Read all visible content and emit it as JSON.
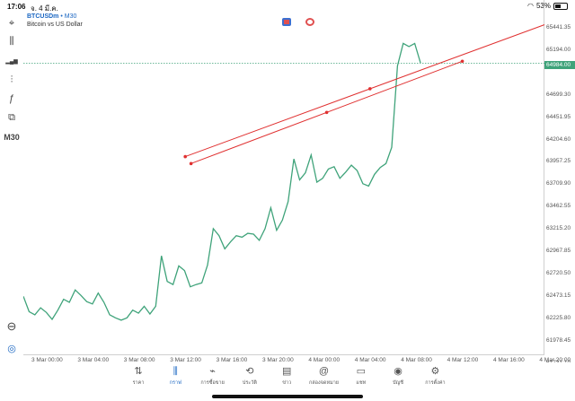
{
  "status": {
    "time": "17:06",
    "date": "จ. 4 มี.ค.",
    "battery_text": "53%",
    "battery_level": 0.53
  },
  "toolbar": {
    "items": [
      {
        "name": "crosshair-icon",
        "glyph": "⌖"
      },
      {
        "name": "candlestick-icon",
        "glyph": "⫼"
      },
      {
        "name": "bar-chart-icon",
        "glyph": "▂▄▆"
      },
      {
        "name": "indicators-icon",
        "glyph": "⫶"
      },
      {
        "name": "function-icon",
        "glyph": "ƒ"
      },
      {
        "name": "objects-icon",
        "glyph": "⧉"
      }
    ],
    "timeframe": "M30",
    "bottom_items": [
      {
        "name": "zoom-icon",
        "glyph": "⊖"
      },
      {
        "name": "app-logo-icon",
        "glyph": "◎"
      }
    ]
  },
  "symbol": {
    "name": "BTCUSDm",
    "timeframe": "• M30",
    "description": "Bitcoin vs US Dollar"
  },
  "price_axis": {
    "labels": [
      "65441.35",
      "65194.00",
      "64699.30",
      "64451.95",
      "64204.60",
      "63957.25",
      "63709.90",
      "63462.55",
      "63215.20",
      "62967.85",
      "62720.50",
      "62473.15",
      "62225.80",
      "61978.45",
      "61731.10",
      "61483.75"
    ],
    "current_price": "64984.00"
  },
  "time_axis": {
    "labels": [
      "3 Mar 00:00",
      "3 Mar 04:00",
      "3 Mar 08:00",
      "3 Mar 12:00",
      "3 Mar 16:00",
      "3 Mar 20:00",
      "4 Mar 00:00",
      "4 Mar 04:00",
      "4 Mar 08:00",
      "4 Mar 12:00",
      "4 Mar 16:00",
      "4 Mar 20:00"
    ]
  },
  "chart_data": {
    "type": "line",
    "series": [
      {
        "values": [
          61978,
          61780,
          61740,
          61830,
          61770,
          61680,
          61800,
          61940,
          61900,
          62060,
          61990,
          61910,
          61880,
          62020,
          61900,
          61740,
          61700,
          61670,
          61700,
          61800,
          61760,
          61850,
          61750,
          61850,
          62500,
          62170,
          62130,
          62370,
          62310,
          62100,
          62130,
          62150,
          62380,
          62850,
          62760,
          62590,
          62680,
          62760,
          62740,
          62790,
          62780,
          62700,
          62850,
          63120,
          62830,
          62960,
          63200,
          63750,
          63480,
          63570,
          63800,
          63450,
          63500,
          63620,
          63650,
          63500,
          63580,
          63670,
          63600,
          63430,
          63400,
          63550,
          63640,
          63690,
          63900,
          64950,
          65240,
          65200,
          65240,
          64990
        ]
      }
    ],
    "trendlines": [
      {
        "from": {
          "x": "3 Mar 12:00",
          "y": 63780
        },
        "to": {
          "x": "4 Mar 20:00",
          "y": 65530
        }
      },
      {
        "from": {
          "x": "3 Mar 12:30",
          "y": 63690
        },
        "to": {
          "x": "4 Mar 12:00",
          "y": 65010
        }
      }
    ],
    "ylim": [
      61400,
      65500
    ],
    "current_price": 64984
  },
  "nav": {
    "items": [
      {
        "name": "nav-quotes",
        "icon": "⇅",
        "label": "ราคา"
      },
      {
        "name": "nav-chart",
        "icon": "⫼",
        "label": "กราฟ"
      },
      {
        "name": "nav-trade",
        "icon": "⌁",
        "label": "การซื้อขาย"
      },
      {
        "name": "nav-history",
        "icon": "⟲",
        "label": "ประวัติ"
      },
      {
        "name": "nav-news",
        "icon": "▤",
        "label": "ข่าว"
      },
      {
        "name": "nav-mailbox",
        "icon": "@",
        "label": "กล่องจดหมาย"
      },
      {
        "name": "nav-chat",
        "icon": "▭",
        "label": "แชท"
      },
      {
        "name": "nav-account",
        "icon": "◉",
        "label": "บัญชี"
      },
      {
        "name": "nav-settings",
        "icon": "⚙",
        "label": "การตั้งค่า"
      }
    ],
    "active": "nav-chart"
  },
  "colors": {
    "line": "#3fa37a",
    "trendline": "#e03030",
    "accent": "#1a66c2"
  }
}
